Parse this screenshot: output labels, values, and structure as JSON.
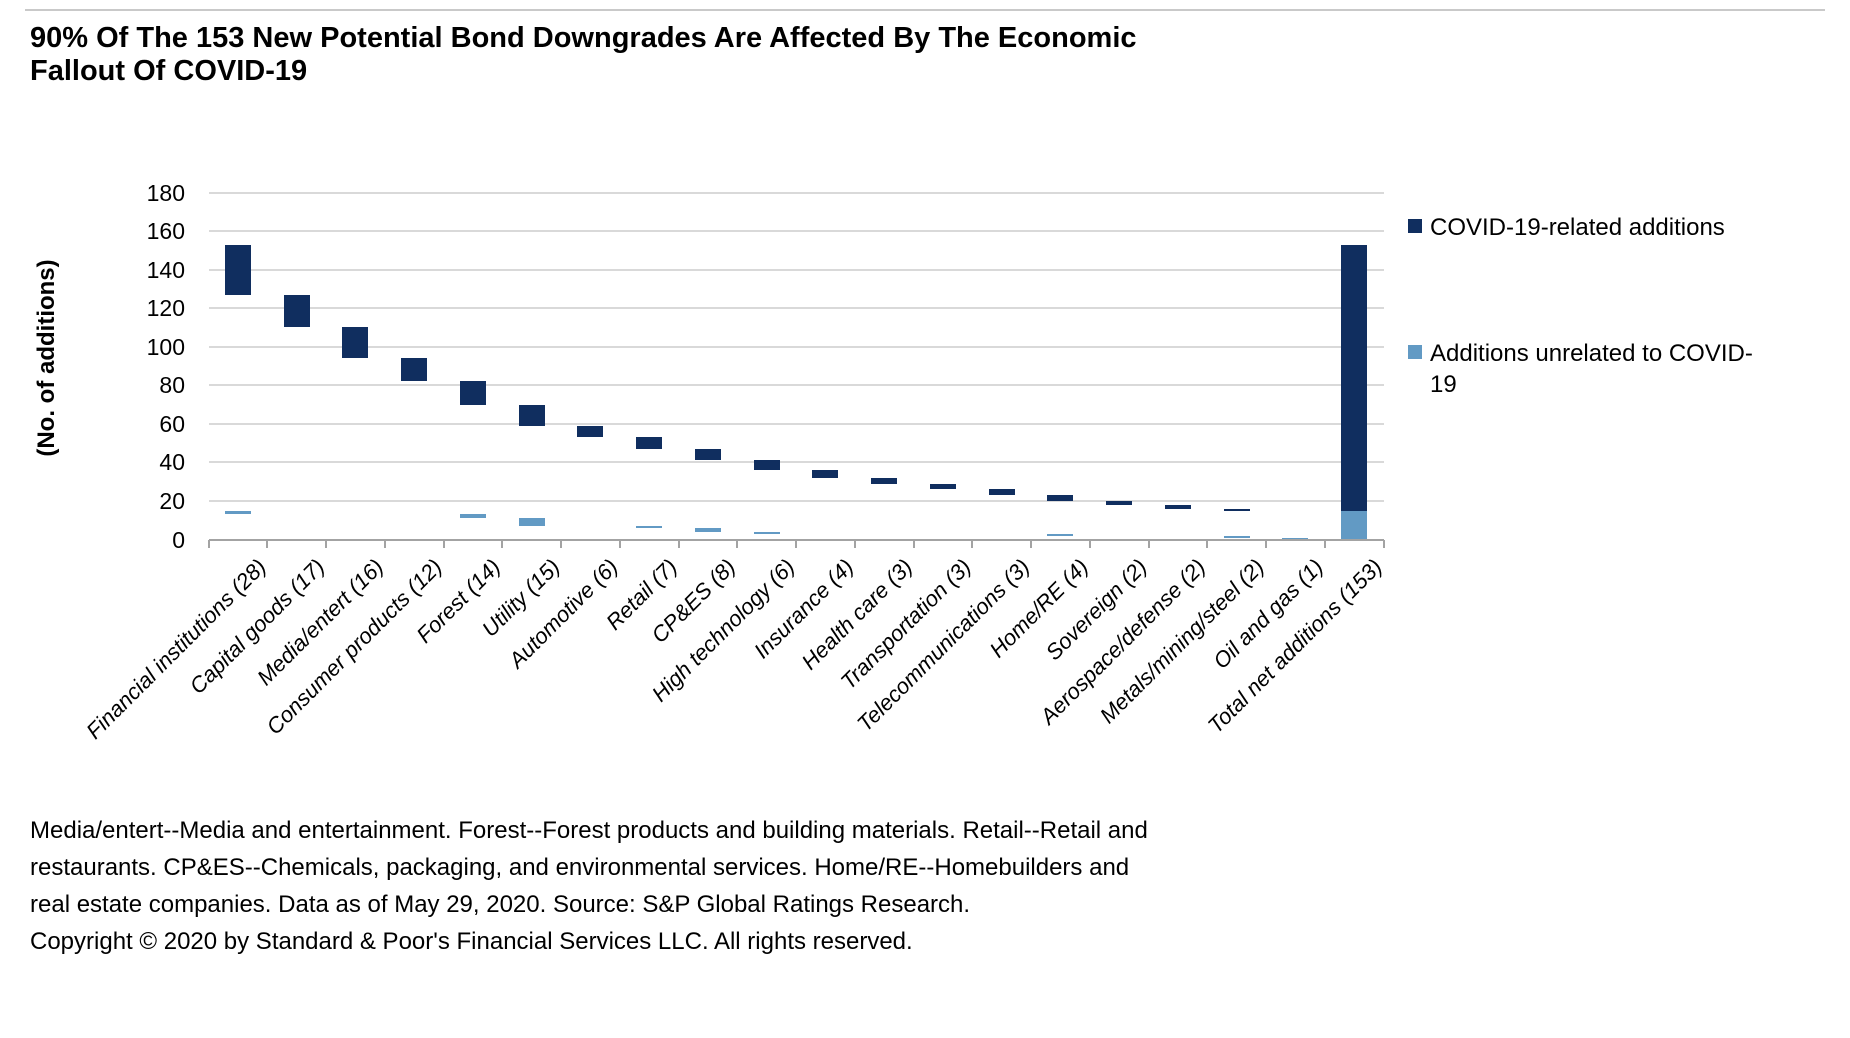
{
  "header": {
    "title": "90% Of The 153 New Potential Bond Downgrades Are Affected By The Economic Fallout Of COVID-19",
    "title_lines": [
      "90% Of The 153 New Potential Bond Downgrades Are Affected By The Economic",
      "Fallout Of COVID-19"
    ]
  },
  "colors": {
    "covid": "#102e5f",
    "unrelated": "#629ac4",
    "gridline": "#d9d9d9",
    "axis": "#a3a3a3"
  },
  "legend": {
    "items": [
      {
        "label": "COVID-19-related additions",
        "lines": [
          "COVID-19-related additions"
        ],
        "color_key": "covid"
      },
      {
        "label": "Additions unrelated to COVID-19",
        "lines": [
          "Additions unrelated to COVID-",
          "19"
        ],
        "color_key": "unrelated"
      }
    ]
  },
  "chart_data": {
    "type": "bar",
    "subtype": "waterfall",
    "title": "90% Of The 153 New Potential Bond Downgrades Are Affected By The Economic Fallout Of COVID-19",
    "xlabel": "",
    "ylabel": "(No. of additions)",
    "ylim": [
      0,
      180
    ],
    "ytick_step": 20,
    "grid": true,
    "legend_position": "right",
    "series_names": [
      "COVID-19-related additions",
      "Additions unrelated to COVID-19"
    ],
    "total_additions": 153,
    "covid_related_total": 138,
    "unrelated_total": 15,
    "categories": [
      {
        "label": "Financial institutions (28)",
        "total": 28,
        "covid": 26,
        "unrelated": 2,
        "covid_span": [
          127,
          153
        ],
        "unrelated_span": [
          13,
          15
        ]
      },
      {
        "label": "Capital goods (17)",
        "total": 17,
        "covid": 17,
        "unrelated": 0,
        "covid_span": [
          110,
          127
        ],
        "unrelated_span": null
      },
      {
        "label": "Media/entert (16)",
        "total": 16,
        "covid": 16,
        "unrelated": 0,
        "covid_span": [
          94,
          110
        ],
        "unrelated_span": null
      },
      {
        "label": "Consumer products (12)",
        "total": 12,
        "covid": 12,
        "unrelated": 0,
        "covid_span": [
          82,
          94
        ],
        "unrelated_span": null
      },
      {
        "label": "Forest (14)",
        "total": 14,
        "covid": 12,
        "unrelated": 2,
        "covid_span": [
          70,
          82
        ],
        "unrelated_span": [
          11,
          13
        ]
      },
      {
        "label": "Utility (15)",
        "total": 15,
        "covid": 11,
        "unrelated": 4,
        "covid_span": [
          59,
          70
        ],
        "unrelated_span": [
          7,
          11
        ]
      },
      {
        "label": "Automotive (6)",
        "total": 6,
        "covid": 6,
        "unrelated": 0,
        "covid_span": [
          53,
          59
        ],
        "unrelated_span": null
      },
      {
        "label": "Retail (7)",
        "total": 7,
        "covid": 6,
        "unrelated": 1,
        "covid_span": [
          47,
          53
        ],
        "unrelated_span": [
          6,
          7
        ]
      },
      {
        "label": "CP&ES (8)",
        "total": 8,
        "covid": 6,
        "unrelated": 2,
        "covid_span": [
          41,
          47
        ],
        "unrelated_span": [
          4,
          6
        ]
      },
      {
        "label": "High technology (6)",
        "total": 6,
        "covid": 5,
        "unrelated": 1,
        "covid_span": [
          36,
          41
        ],
        "unrelated_span": [
          3,
          4
        ]
      },
      {
        "label": "Insurance (4)",
        "total": 4,
        "covid": 4,
        "unrelated": 0,
        "covid_span": [
          32,
          36
        ],
        "unrelated_span": null
      },
      {
        "label": "Health care (3)",
        "total": 3,
        "covid": 3,
        "unrelated": 0,
        "covid_span": [
          29,
          32
        ],
        "unrelated_span": null
      },
      {
        "label": "Transportation (3)",
        "total": 3,
        "covid": 3,
        "unrelated": 0,
        "covid_span": [
          26,
          29
        ],
        "unrelated_span": null
      },
      {
        "label": "Telecommunications (3)",
        "total": 3,
        "covid": 3,
        "unrelated": 0,
        "covid_span": [
          23,
          26
        ],
        "unrelated_span": null
      },
      {
        "label": "Home/RE (4)",
        "total": 4,
        "covid": 3,
        "unrelated": 1,
        "covid_span": [
          20,
          23
        ],
        "unrelated_span": [
          2,
          3
        ]
      },
      {
        "label": "Sovereign (2)",
        "total": 2,
        "covid": 2,
        "unrelated": 0,
        "covid_span": [
          18,
          20
        ],
        "unrelated_span": null
      },
      {
        "label": "Aerospace/defense (2)",
        "total": 2,
        "covid": 2,
        "unrelated": 0,
        "covid_span": [
          16,
          18
        ],
        "unrelated_span": null
      },
      {
        "label": "Metals/mining/steel (2)",
        "total": 2,
        "covid": 1,
        "unrelated": 1,
        "covid_span": [
          15,
          16
        ],
        "unrelated_span": [
          1,
          2
        ]
      },
      {
        "label": "Oil and gas (1)",
        "total": 1,
        "covid": 0,
        "unrelated": 1,
        "covid_span": null,
        "unrelated_span": [
          0,
          1
        ]
      },
      {
        "label": "Total net additions (153)",
        "total": 153,
        "covid": 138,
        "unrelated": 15,
        "covid_span": [
          15,
          153
        ],
        "unrelated_span": [
          0,
          15
        ]
      }
    ]
  },
  "footer": {
    "lines": [
      "Media/entert--Media and entertainment. Forest--Forest products and building materials. Retail--Retail and",
      "restaurants. CP&ES--Chemicals, packaging, and environmental services. Home/RE--Homebuilders and",
      "real estate companies. Data as of May 29, 2020. Source: S&P Global Ratings Research.",
      "Copyright © 2020 by Standard & Poor's Financial Services LLC. All rights reserved."
    ]
  }
}
